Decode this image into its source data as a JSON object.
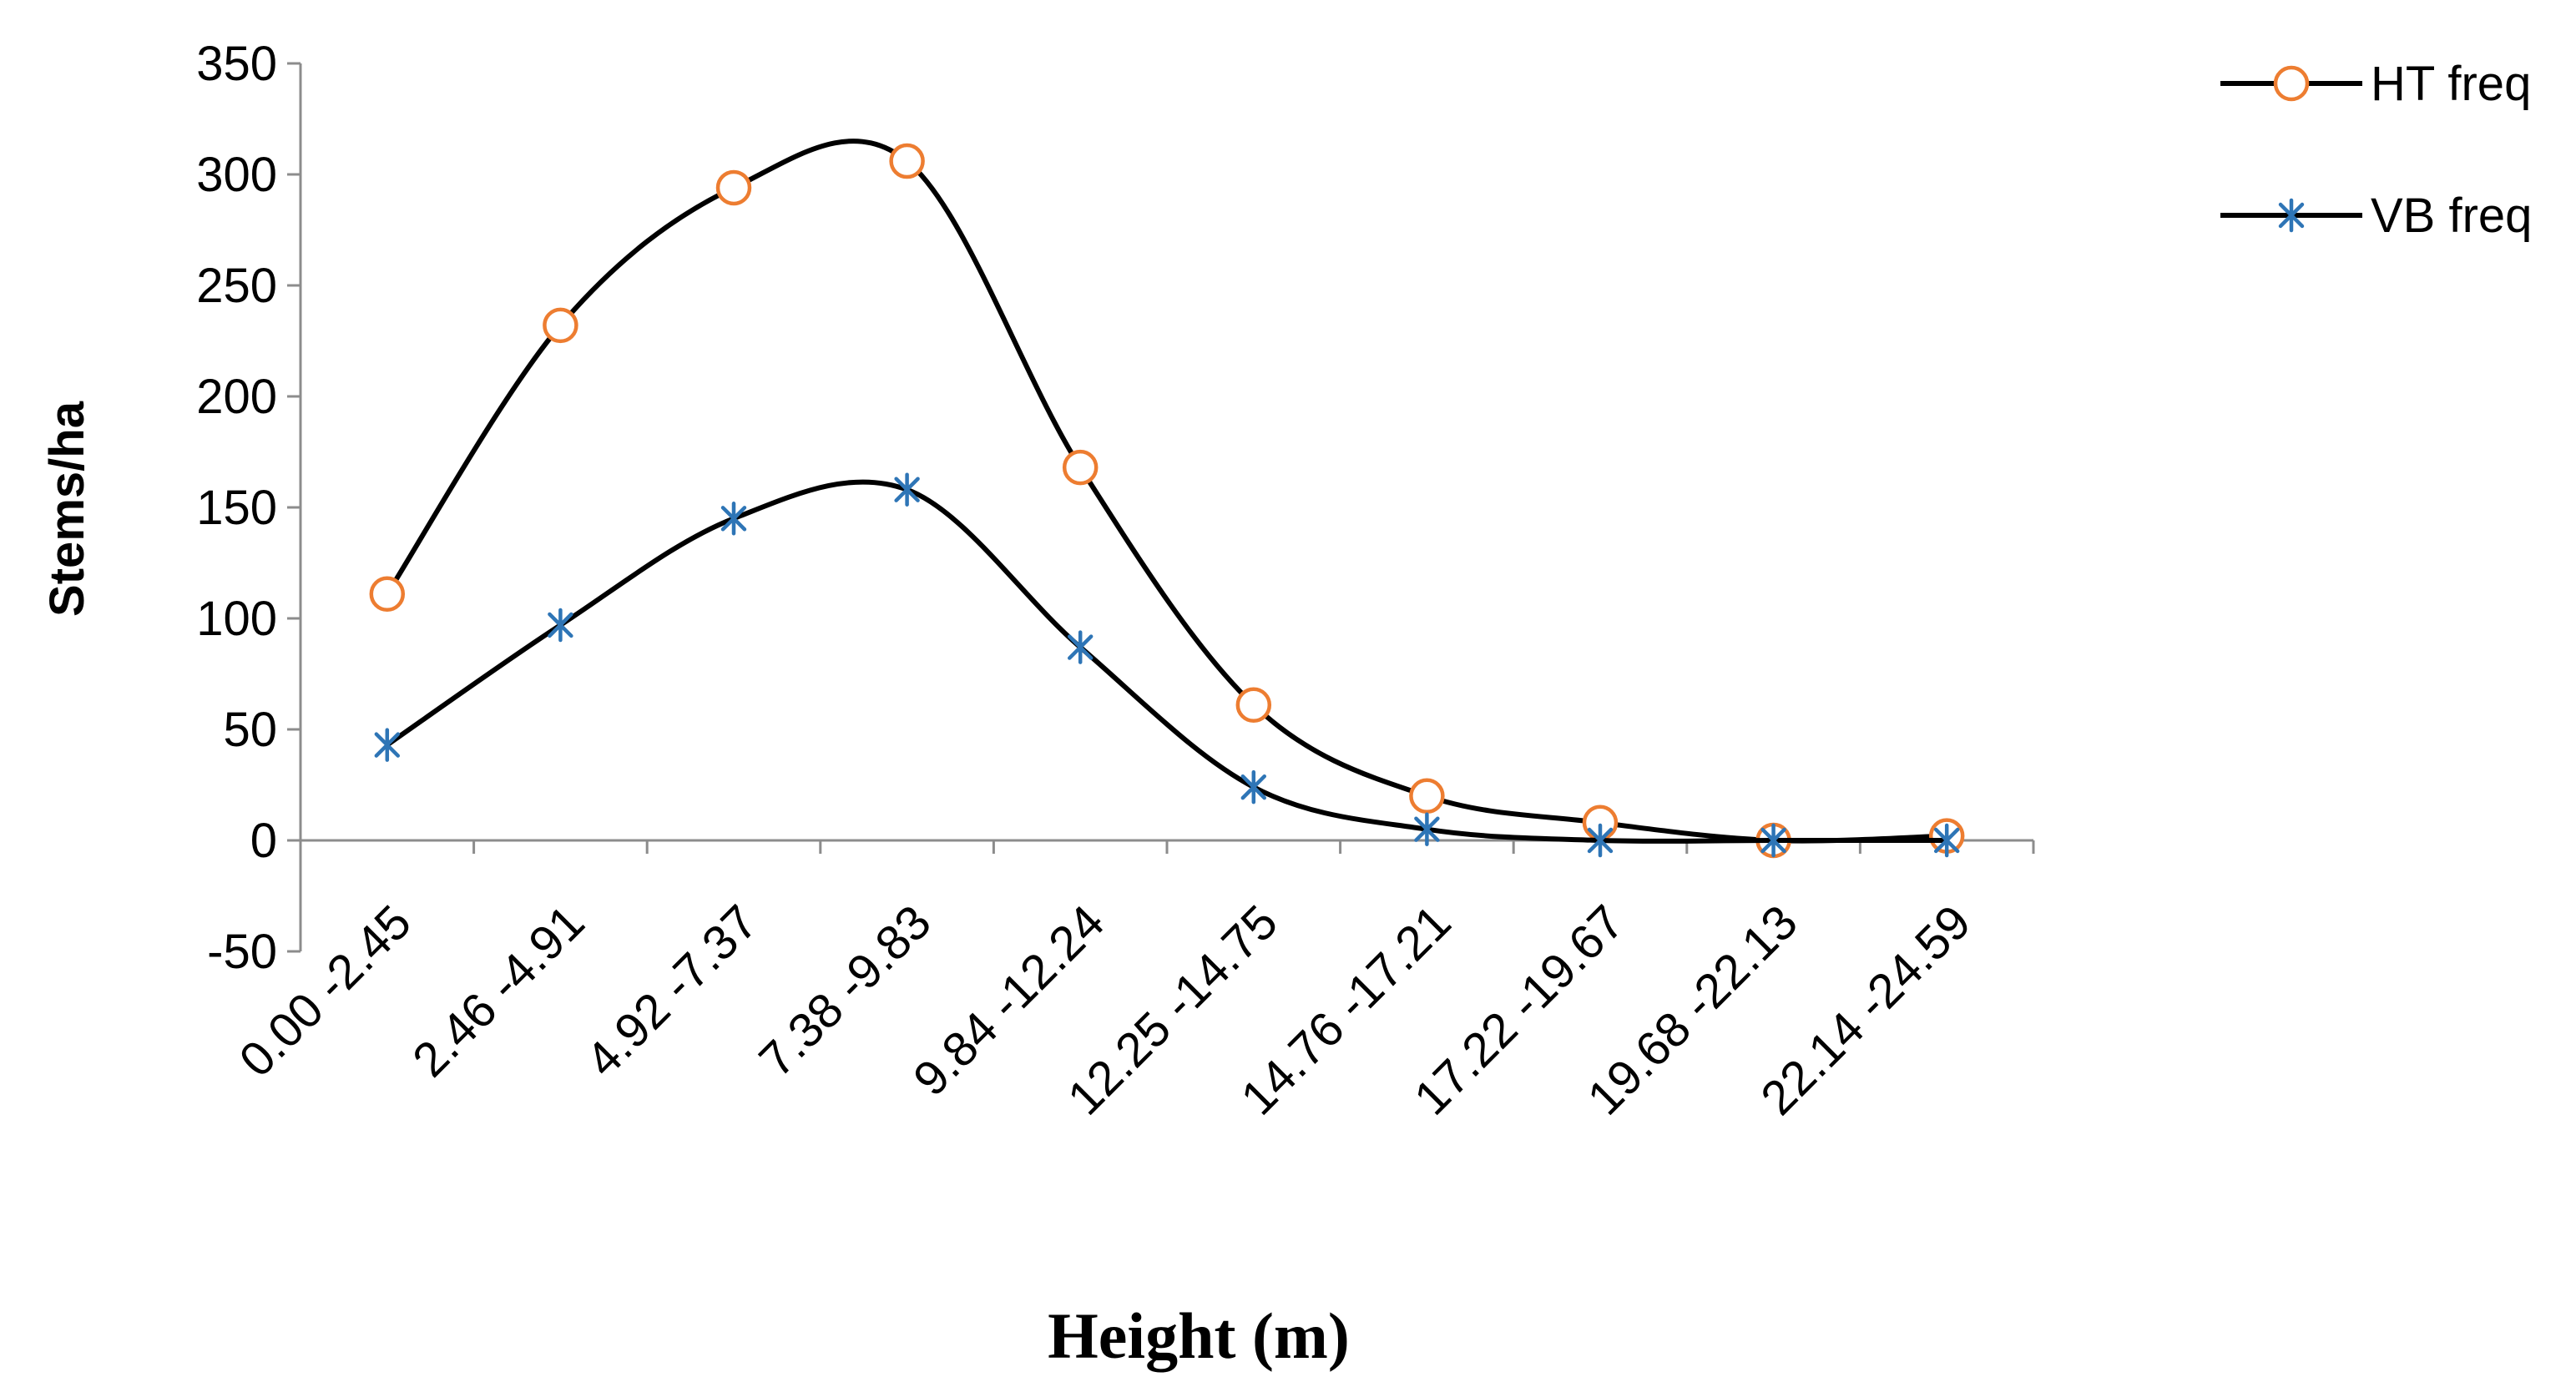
{
  "chart_data": {
    "type": "line",
    "title": "",
    "xlabel": "Height (m)",
    "ylabel": "Stems/ha",
    "ylim": [
      -50,
      350
    ],
    "yticks": [
      -50,
      0,
      50,
      100,
      150,
      200,
      250,
      300,
      350
    ],
    "categories": [
      "0.00 -2.45",
      "2.46 -4.91",
      "4.92 -7.37",
      "7.38 -9.83",
      "9.84 -12.24",
      "12.25 -14.75",
      "14.76 -17.21",
      "17.22 -19.67",
      "19.68 -22.13",
      "22.14 -24.59"
    ],
    "smooth": true,
    "grid": false,
    "legend_position": "top-right",
    "series": [
      {
        "name": "HT freq",
        "marker": "circle",
        "line_color": "#000000",
        "marker_color": "#ED7D31",
        "values": [
          111,
          232,
          294,
          306,
          168,
          61,
          20,
          8,
          0,
          2
        ]
      },
      {
        "name": "VB freq",
        "marker": "asterisk",
        "line_color": "#000000",
        "marker_color": "#2E75B6",
        "values": [
          43,
          97,
          145,
          158,
          87,
          24,
          5,
          0,
          0,
          0
        ]
      }
    ]
  }
}
